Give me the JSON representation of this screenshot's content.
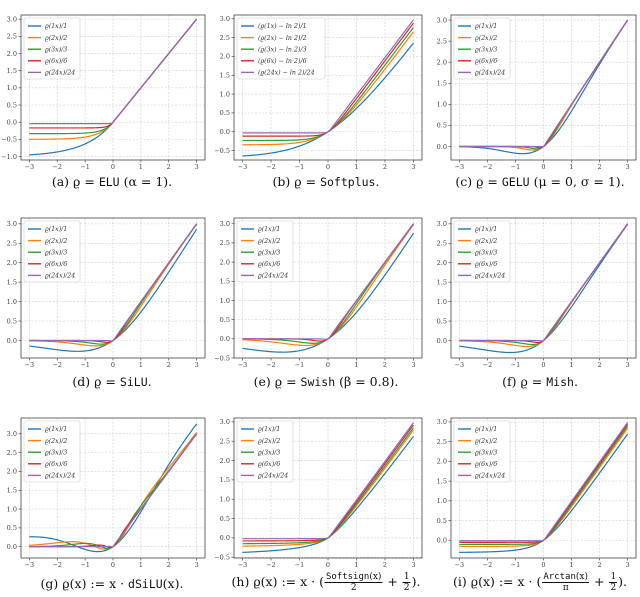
{
  "colors": [
    "#1f77b4",
    "#ff7f0e",
    "#2ca02c",
    "#d62728",
    "#9467bd"
  ],
  "chart_data": [
    {
      "id": "a",
      "type": "line",
      "activation": "elu",
      "scales": [
        1,
        2,
        3,
        6,
        24
      ],
      "x_range": [
        -3,
        3
      ],
      "ylim": [
        -1.1,
        3.12
      ],
      "xticks": [
        -3,
        -2,
        -1,
        0,
        1,
        2,
        3
      ],
      "yticks": [
        -1,
        -0.5,
        0,
        0.5,
        1,
        1.5,
        2,
        2.5,
        3
      ],
      "grid": true,
      "legend_position": "top-left",
      "legend": [
        "ϱ(1x)/1",
        "ϱ(2x)/2",
        "ϱ(3x)/3",
        "ϱ(6x)/6",
        "ϱ(24x)/24"
      ]
    },
    {
      "id": "b",
      "type": "line",
      "activation": "softplus_minus_ln2",
      "scales": [
        1,
        2,
        3,
        6,
        24
      ],
      "x_range": [
        -3,
        3
      ],
      "ylim": [
        -0.75,
        3.1
      ],
      "xticks": [
        -3,
        -2,
        -1,
        0,
        1,
        2,
        3
      ],
      "yticks": [
        -0.5,
        0,
        0.5,
        1,
        1.5,
        2,
        2.5,
        3
      ],
      "grid": true,
      "legend_position": "top-left",
      "legend": [
        "(ϱ(1x) − ln 2)/1",
        "(ϱ(2x) − ln 2)/2",
        "(ϱ(3x) − ln 2)/3",
        "(ϱ(6x) − ln 2)/6",
        "(ϱ(24x) − ln 2)/24"
      ]
    },
    {
      "id": "c",
      "type": "line",
      "activation": "gelu",
      "scales": [
        1,
        2,
        3,
        6,
        24
      ],
      "x_range": [
        -3,
        3
      ],
      "ylim": [
        -0.32,
        3.12
      ],
      "xticks": [
        -3,
        -2,
        -1,
        0,
        1,
        2,
        3
      ],
      "yticks": [
        0,
        0.5,
        1,
        1.5,
        2,
        2.5,
        3
      ],
      "grid": true,
      "legend_position": "top-left",
      "legend": [
        "ϱ(1x)/1",
        "ϱ(2x)/2",
        "ϱ(3x)/3",
        "ϱ(6x)/6",
        "ϱ(24x)/24"
      ]
    },
    {
      "id": "d",
      "type": "line",
      "activation": "silu",
      "scales": [
        1,
        2,
        3,
        6,
        24
      ],
      "x_range": [
        -3,
        3
      ],
      "ylim": [
        -0.45,
        3.15
      ],
      "xticks": [
        -3,
        -2,
        -1,
        0,
        1,
        2,
        3
      ],
      "yticks": [
        0,
        0.5,
        1,
        1.5,
        2,
        2.5,
        3
      ],
      "grid": true,
      "legend_position": "top-left",
      "legend": [
        "ϱ(1x)/1",
        "ϱ(2x)/2",
        "ϱ(3x)/3",
        "ϱ(6x)/6",
        "ϱ(24x)/24"
      ]
    },
    {
      "id": "e",
      "type": "line",
      "activation": "swish_beta_0.8",
      "scales": [
        1,
        2,
        3,
        6,
        24
      ],
      "x_range": [
        -3,
        3
      ],
      "ylim": [
        -0.5,
        3.15
      ],
      "xticks": [
        -3,
        -2,
        -1,
        0,
        1,
        2,
        3
      ],
      "yticks": [
        -0.5,
        0,
        0.5,
        1,
        1.5,
        2,
        2.5,
        3
      ],
      "grid": true,
      "legend_position": "top-left",
      "legend": [
        "ϱ(1x)/1",
        "ϱ(2x)/2",
        "ϱ(3x)/3",
        "ϱ(6x)/6",
        "ϱ(24x)/24"
      ]
    },
    {
      "id": "f",
      "type": "line",
      "activation": "mish",
      "scales": [
        1,
        2,
        3,
        6,
        24
      ],
      "x_range": [
        -3,
        3
      ],
      "ylim": [
        -0.45,
        3.15
      ],
      "xticks": [
        -3,
        -2,
        -1,
        0,
        1,
        2,
        3
      ],
      "yticks": [
        0,
        0.5,
        1,
        1.5,
        2,
        2.5,
        3
      ],
      "grid": true,
      "legend_position": "top-left",
      "legend": [
        "ϱ(1x)/1",
        "ϱ(2x)/2",
        "ϱ(3x)/3",
        "ϱ(6x)/6",
        "ϱ(24x)/24"
      ]
    },
    {
      "id": "g",
      "type": "line",
      "activation": "x_dsilu",
      "scales": [
        1,
        2,
        3,
        6,
        24
      ],
      "x_range": [
        -3,
        3
      ],
      "ylim": [
        -0.3,
        3.42
      ],
      "xticks": [
        -3,
        -2,
        -1,
        0,
        1,
        2,
        3
      ],
      "yticks": [
        0,
        0.5,
        1,
        1.5,
        2,
        2.5,
        3
      ],
      "grid": true,
      "legend_position": "top-left",
      "legend": [
        "ϱ(1x)/1",
        "ϱ(2x)/2",
        "ϱ(3x)/3",
        "ϱ(6x)/6",
        "ϱ(24x)/24"
      ]
    },
    {
      "id": "h",
      "type": "line",
      "activation": "x_softsign_gate",
      "scales": [
        1,
        2,
        3,
        6,
        24
      ],
      "x_range": [
        -3,
        3
      ],
      "ylim": [
        -0.52,
        3.1
      ],
      "xticks": [
        -3,
        -2,
        -1,
        0,
        1,
        2,
        3
      ],
      "yticks": [
        -0.5,
        0,
        0.5,
        1,
        1.5,
        2,
        2.5,
        3
      ],
      "grid": true,
      "legend_position": "top-left",
      "legend": [
        "ϱ(1x)/1",
        "ϱ(2x)/2",
        "ϱ(3x)/3",
        "ϱ(6x)/6",
        "ϱ(24x)/24"
      ]
    },
    {
      "id": "i",
      "type": "line",
      "activation": "x_arctan_gate",
      "scales": [
        1,
        2,
        3,
        6,
        24
      ],
      "x_range": [
        -3,
        3
      ],
      "ylim": [
        -0.45,
        3.1
      ],
      "xticks": [
        -3,
        -2,
        -1,
        0,
        1,
        2,
        3
      ],
      "yticks": [
        0,
        0.5,
        1,
        1.5,
        2,
        2.5,
        3
      ],
      "grid": true,
      "legend_position": "top-left",
      "legend": [
        "ϱ(1x)/1",
        "ϱ(2x)/2",
        "ϱ(3x)/3",
        "ϱ(6x)/6",
        "ϱ(24x)/24"
      ]
    }
  ],
  "captions": {
    "a": {
      "label": "(a)",
      "pre": "ϱ =",
      "mono": "ELU",
      "post": "(α = 1)."
    },
    "b": {
      "label": "(b)",
      "pre": "ϱ =",
      "mono": "Softplus",
      "post": "."
    },
    "c": {
      "label": "(c)",
      "pre": "ϱ =",
      "mono": "GELU",
      "post": "(μ = 0, σ = 1)."
    },
    "d": {
      "label": "(d)",
      "pre": "ϱ =",
      "mono": "SiLU",
      "post": "."
    },
    "e": {
      "label": "(e)",
      "pre": "ϱ =",
      "mono": "Swish",
      "post": "(β = 0.8)."
    },
    "f": {
      "label": "(f)",
      "pre": "ϱ =",
      "mono": "Mish",
      "post": "."
    },
    "g": {
      "label": "(g)",
      "pre": "ϱ(x) := x ·",
      "mono": "dSiLU",
      "post": "(x)."
    },
    "h": {
      "label": "(h)",
      "pre": "ϱ(x) := x · (",
      "num_mono": "Softsign",
      "num_rest": "(x)",
      "den": "2",
      "plus": "+",
      "half_num": "1",
      "half_den": "2",
      "post": ")."
    },
    "i": {
      "label": "(i)",
      "pre": "ϱ(x) := x · (",
      "num_mono": "Arctan",
      "num_rest": "(x)",
      "den": "π",
      "plus": "+",
      "half_num": "1",
      "half_den": "2",
      "post": ")."
    }
  }
}
